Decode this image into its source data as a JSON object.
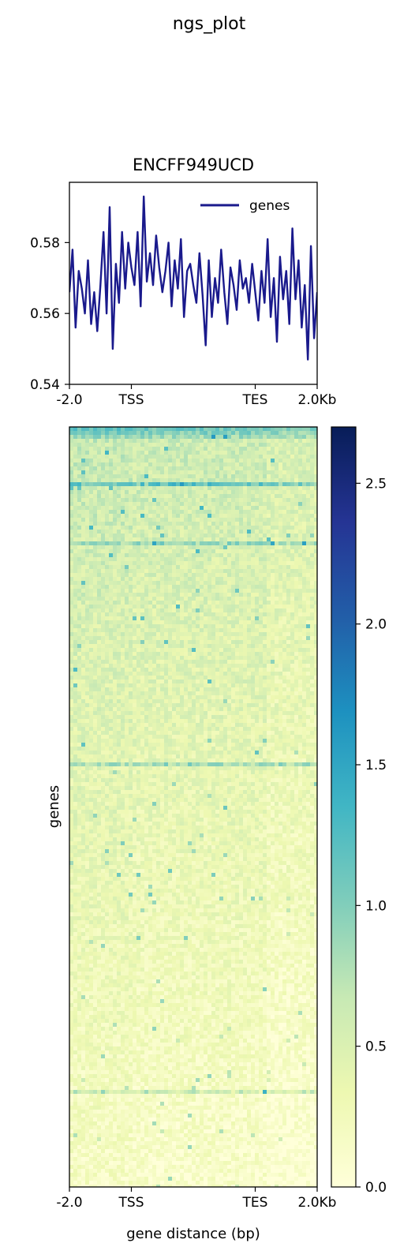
{
  "figure": {
    "suptitle": "ngs_plot"
  },
  "chart_data": [
    {
      "type": "line",
      "title": "ENCFF949UCD",
      "xlabel": "",
      "ylabel": "",
      "ylim": [
        0.54,
        0.597
      ],
      "yticks": [
        {
          "value": 0.54,
          "label": "0.54"
        },
        {
          "value": 0.56,
          "label": "0.56"
        },
        {
          "value": 0.58,
          "label": "0.58"
        }
      ],
      "xticks": [
        {
          "value": 0,
          "label": "-2.0"
        },
        {
          "value": 20,
          "label": "TSS"
        },
        {
          "value": 60,
          "label": "TES"
        },
        {
          "value": 80,
          "label": "2.0Kb"
        }
      ],
      "xlim": [
        0,
        80
      ],
      "legend": {
        "placement": "top-right"
      },
      "series": [
        {
          "name": "genes",
          "color": "#1a1a8c",
          "x": [
            0,
            1,
            2,
            3,
            4,
            5,
            6,
            7,
            8,
            9,
            10,
            11,
            12,
            13,
            14,
            15,
            16,
            17,
            18,
            19,
            20,
            21,
            22,
            23,
            24,
            25,
            26,
            27,
            28,
            29,
            30,
            31,
            32,
            33,
            34,
            35,
            36,
            37,
            38,
            39,
            40,
            41,
            42,
            43,
            44,
            45,
            46,
            47,
            48,
            49,
            50,
            51,
            52,
            53,
            54,
            55,
            56,
            57,
            58,
            59,
            60,
            61,
            62,
            63,
            64,
            65,
            66,
            67,
            68,
            69,
            70,
            71,
            72,
            73,
            74,
            75,
            76,
            77,
            78,
            79,
            80
          ],
          "values": [
            0.566,
            0.578,
            0.556,
            0.572,
            0.567,
            0.56,
            0.575,
            0.557,
            0.566,
            0.555,
            0.568,
            0.583,
            0.56,
            0.59,
            0.55,
            0.574,
            0.563,
            0.583,
            0.567,
            0.58,
            0.573,
            0.568,
            0.583,
            0.562,
            0.593,
            0.569,
            0.577,
            0.568,
            0.582,
            0.573,
            0.566,
            0.572,
            0.58,
            0.562,
            0.575,
            0.567,
            0.581,
            0.559,
            0.572,
            0.574,
            0.568,
            0.563,
            0.577,
            0.565,
            0.551,
            0.575,
            0.559,
            0.57,
            0.563,
            0.578,
            0.566,
            0.557,
            0.573,
            0.568,
            0.561,
            0.575,
            0.567,
            0.57,
            0.563,
            0.574,
            0.566,
            0.558,
            0.572,
            0.563,
            0.581,
            0.559,
            0.57,
            0.552,
            0.576,
            0.564,
            0.572,
            0.557,
            0.584,
            0.564,
            0.575,
            0.556,
            0.568,
            0.547,
            0.579,
            0.553,
            0.566
          ]
        }
      ]
    },
    {
      "type": "heatmap",
      "title": "",
      "xlabel": "gene distance (bp)",
      "ylabel": "genes",
      "xticks": [
        {
          "value": 0,
          "label": "-2.0"
        },
        {
          "value": 20,
          "label": "TSS"
        },
        {
          "value": 60,
          "label": "TES"
        },
        {
          "value": 80,
          "label": "2.0Kb"
        }
      ],
      "xlim": [
        0,
        80
      ],
      "colormap": "YlGnBu",
      "colormap_stops": [
        "#ffffd9",
        "#edf8b1",
        "#c7e9b4",
        "#7fcdbb",
        "#41b6c4",
        "#1d91c0",
        "#225ea8",
        "#253494",
        "#081d58"
      ],
      "clim": [
        0,
        2.7
      ],
      "colorbar_ticks": [
        {
          "value": 0.0,
          "label": "0.0"
        },
        {
          "value": 0.5,
          "label": "0.5"
        },
        {
          "value": 1.0,
          "label": "1.0"
        },
        {
          "value": 1.5,
          "label": "1.5"
        },
        {
          "value": 2.0,
          "label": "2.0"
        },
        {
          "value": 2.5,
          "label": "2.5"
        }
      ]
    }
  ]
}
